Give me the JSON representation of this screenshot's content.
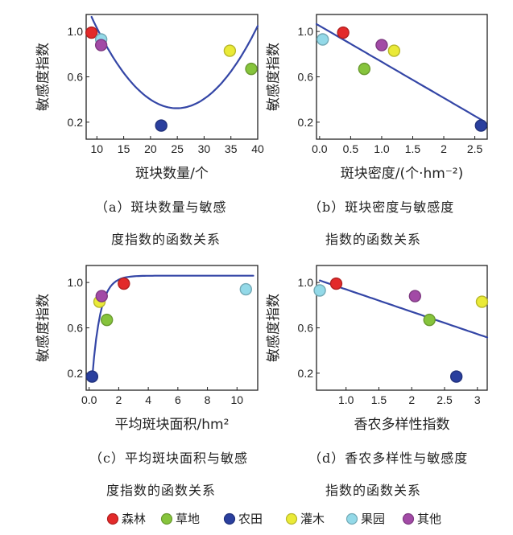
{
  "colors": {
    "森林": "#e32a2a",
    "草地": "#86c43c",
    "农田": "#2a3f9e",
    "灌木": "#eaea37",
    "果园": "#93d9e8",
    "其他": "#a24aa6",
    "fit_line": "#3446a6"
  },
  "legend": [
    "森林",
    "草地",
    "农田",
    "灌木",
    "果园",
    "其他"
  ],
  "chart_data": [
    {
      "type": "scatter",
      "xlabel": "斑块数量/个",
      "ylabel": "敏感度指数",
      "caption": [
        "（a）斑块数量与敏感",
        "度指数的函数关系"
      ],
      "xlim": [
        8,
        40
      ],
      "ylim": [
        0.05,
        1.15
      ],
      "xticks": [
        10,
        15,
        20,
        25,
        30,
        35,
        40
      ],
      "yticks": [
        0.2,
        0.6,
        1.0
      ],
      "points": [
        {
          "class": "森林",
          "x": 9,
          "y": 0.99
        },
        {
          "class": "果园",
          "x": 10.8,
          "y": 0.93
        },
        {
          "class": "其他",
          "x": 10.8,
          "y": 0.88
        },
        {
          "class": "农田",
          "x": 22,
          "y": 0.17
        },
        {
          "class": "灌木",
          "x": 34.8,
          "y": 0.83
        },
        {
          "class": "草地",
          "x": 38.8,
          "y": 0.67
        }
      ],
      "fit": {
        "kind": "quadratic",
        "coef": [
          0.003184,
          -0.1586,
          2.298
        ],
        "xrange": [
          9,
          40
        ]
      }
    },
    {
      "type": "scatter",
      "xlabel": "斑块密度/(个·hm⁻²)",
      "ylabel": "敏感度指数",
      "caption": [
        "（b）斑块密度与敏感度",
        "指数的函数关系"
      ],
      "xlim": [
        -0.05,
        2.7
      ],
      "ylim": [
        0.05,
        1.15
      ],
      "xticks": [
        0,
        0.5,
        1.0,
        1.5,
        2.0,
        2.5
      ],
      "yticks": [
        0.2,
        0.6,
        1.0
      ],
      "points": [
        {
          "class": "果园",
          "x": 0.05,
          "y": 0.93
        },
        {
          "class": "森林",
          "x": 0.38,
          "y": 0.99
        },
        {
          "class": "草地",
          "x": 0.72,
          "y": 0.67
        },
        {
          "class": "其他",
          "x": 1.0,
          "y": 0.88
        },
        {
          "class": "灌木",
          "x": 1.2,
          "y": 0.83
        },
        {
          "class": "农田",
          "x": 2.6,
          "y": 0.17
        }
      ],
      "fit": {
        "kind": "linear",
        "coef": [
          1.05,
          -0.318
        ],
        "xrange": [
          -0.05,
          2.65
        ]
      }
    },
    {
      "type": "scatter",
      "xlabel": "平均斑块面积/hm²",
      "ylabel": "敏感度指数",
      "caption": [
        "（c）平均斑块面积与敏感",
        "度指数的函数关系"
      ],
      "xlim": [
        -0.2,
        11.4
      ],
      "ylim": [
        0.05,
        1.15
      ],
      "xticks": [
        0,
        2,
        4,
        6,
        8,
        10
      ],
      "yticks": [
        0.2,
        0.6,
        1.0
      ],
      "points": [
        {
          "class": "农田",
          "x": 0.2,
          "y": 0.17
        },
        {
          "class": "灌木",
          "x": 0.7,
          "y": 0.83
        },
        {
          "class": "其他",
          "x": 0.85,
          "y": 0.88
        },
        {
          "class": "草地",
          "x": 1.2,
          "y": 0.67
        },
        {
          "class": "森林",
          "x": 2.35,
          "y": 0.99
        },
        {
          "class": "果园",
          "x": 10.6,
          "y": 0.94
        }
      ],
      "fit": {
        "kind": "saturation",
        "coef": [
          1.06,
          0.2,
          0.92,
          0.55
        ],
        "xrange": [
          0.2,
          11.1
        ]
      }
    },
    {
      "type": "scatter",
      "xlabel": "香农多样性指数",
      "ylabel": "敏感度指数",
      "caption": [
        "（d）香农多样性与敏感度",
        "指数的函数关系"
      ],
      "xlim": [
        0.55,
        3.15
      ],
      "ylim": [
        0.05,
        1.15
      ],
      "xticks": [
        1.0,
        1.5,
        2.0,
        2.5,
        3.0
      ],
      "yticks": [
        0.2,
        0.6,
        1.0
      ],
      "points": [
        {
          "class": "果园",
          "x": 0.6,
          "y": 0.93
        },
        {
          "class": "森林",
          "x": 0.85,
          "y": 0.99
        },
        {
          "class": "其他",
          "x": 2.05,
          "y": 0.88
        },
        {
          "class": "草地",
          "x": 2.27,
          "y": 0.67
        },
        {
          "class": "农田",
          "x": 2.68,
          "y": 0.17
        },
        {
          "class": "灌木",
          "x": 3.07,
          "y": 0.83
        }
      ],
      "fit": {
        "kind": "linear",
        "coef": [
          1.136,
          -0.197
        ],
        "xrange": [
          0.6,
          3.15
        ]
      }
    }
  ]
}
